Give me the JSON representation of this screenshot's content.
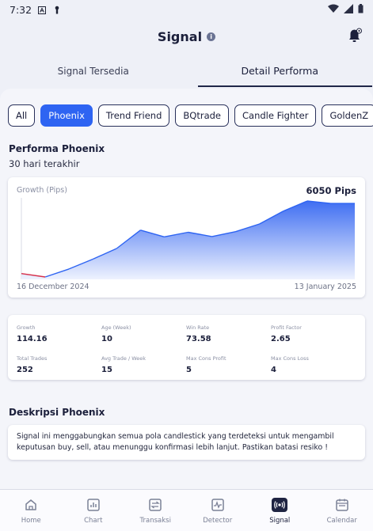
{
  "status_bar": {
    "time": "7:32"
  },
  "header": {
    "title": "Signal"
  },
  "tabs": [
    {
      "label": "Signal Tersedia",
      "active": false
    },
    {
      "label": "Detail Performa",
      "active": true
    }
  ],
  "filters": [
    {
      "label": "All",
      "active": false
    },
    {
      "label": "Phoenix",
      "active": true
    },
    {
      "label": "Trend Friend",
      "active": false
    },
    {
      "label": "BQtrade",
      "active": false
    },
    {
      "label": "Candle Fighter",
      "active": false
    },
    {
      "label": "GoldenZ",
      "active": false
    }
  ],
  "performance": {
    "title": "Performa Phoenix",
    "subtitle": "30 hari terakhir"
  },
  "chart_data": {
    "type": "area",
    "label": "Growth (Pips)",
    "total": "6050 Pips",
    "x_start": "16 December 2024",
    "x_end": "13 January 2025",
    "values": [
      3,
      -8,
      18,
      50,
      85,
      145,
      123,
      138,
      124,
      140,
      165,
      207,
      240,
      232,
      232
    ],
    "negative_color": "#d6304a",
    "line_color": "#2e64f2",
    "fill_top_color": "#3f6ef2",
    "fill_bottom_color": "#eef2fe"
  },
  "stats": [
    {
      "label": "Growth",
      "value": "114.16"
    },
    {
      "label": "Age (Week)",
      "value": "10"
    },
    {
      "label": "Win Rate",
      "value": "73.58"
    },
    {
      "label": "Profit Factor",
      "value": "2.65"
    },
    {
      "label": "Total Trades",
      "value": "252"
    },
    {
      "label": "Avg Trade / Week",
      "value": "15"
    },
    {
      "label": "Max Cons Profit",
      "value": "5"
    },
    {
      "label": "Max Cons Loss",
      "value": "4"
    }
  ],
  "description": {
    "title": "Deskripsi Phoenix",
    "text": "Signal ini menggabungkan semua pola candlestick yang terdeteksi untuk mengambil keputusan buy, sell, atau menunggu konfirmasi lebih lanjut. Pastikan batasi resiko !"
  },
  "nav": [
    {
      "label": "Home",
      "icon": "home-icon",
      "active": false
    },
    {
      "label": "Chart",
      "icon": "chart-icon",
      "active": false
    },
    {
      "label": "Transaksi",
      "icon": "transaction-icon",
      "active": false
    },
    {
      "label": "Detector",
      "icon": "detector-icon",
      "active": false
    },
    {
      "label": "Signal",
      "icon": "signal-icon",
      "active": true
    },
    {
      "label": "Calendar",
      "icon": "calendar-icon",
      "active": false
    }
  ]
}
